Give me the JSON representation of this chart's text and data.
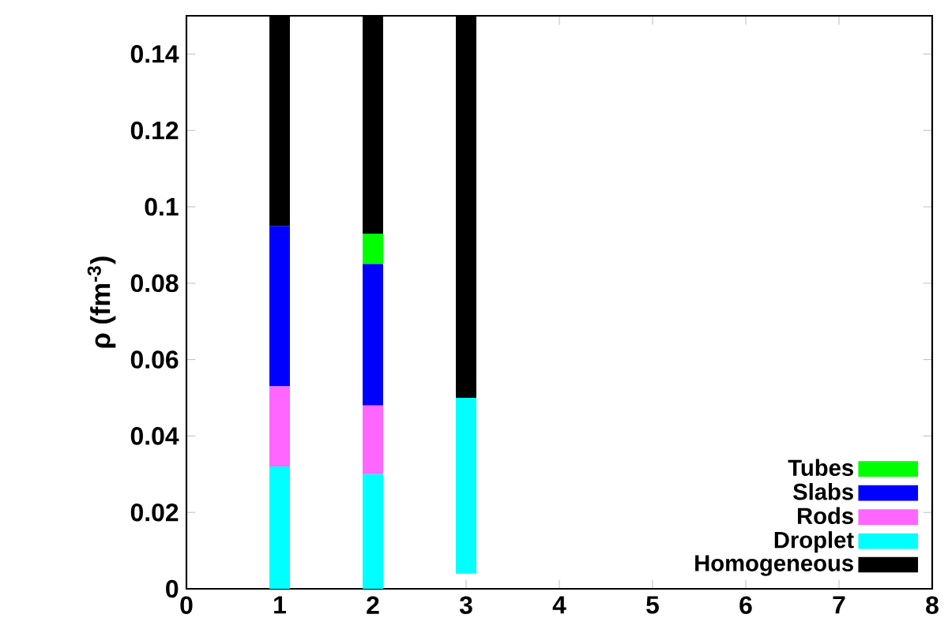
{
  "chart_data": {
    "type": "bar",
    "ylabel": "ρ (fm$^{-3}$)",
    "x": [
      1,
      2,
      3
    ],
    "series": [
      {
        "name": "Tubes",
        "color": "#00ff00",
        "base": [
          null,
          0.085,
          null
        ],
        "values": [
          null,
          0.008,
          null
        ]
      },
      {
        "name": "Slabs",
        "color": "#0000ff",
        "base": [
          0.053,
          0.048,
          null
        ],
        "values": [
          0.042,
          0.037,
          null
        ]
      },
      {
        "name": "Rods",
        "color": "#ff66ff",
        "base": [
          0.032,
          0.03,
          null
        ],
        "values": [
          0.021,
          0.018,
          null
        ]
      },
      {
        "name": "Droplet",
        "color": "#00ffff",
        "base": [
          0,
          0,
          0.004
        ],
        "values": [
          0.032,
          0.03,
          0.046
        ]
      },
      {
        "name": "Homogeneous",
        "color": "#000000",
        "base": [
          0.095,
          0.093,
          0.05
        ],
        "values": [
          0.055,
          0.057,
          0.1
        ]
      }
    ],
    "xlim": [
      0,
      8
    ],
    "xticks": [
      0,
      1,
      2,
      3,
      4,
      5,
      6,
      7,
      8
    ],
    "ylim": [
      0,
      0.15
    ],
    "yticks": [
      0,
      0.02,
      0.04,
      0.06,
      0.08,
      0.1,
      0.12,
      0.14
    ],
    "grid": false,
    "legend": "bottom right"
  }
}
